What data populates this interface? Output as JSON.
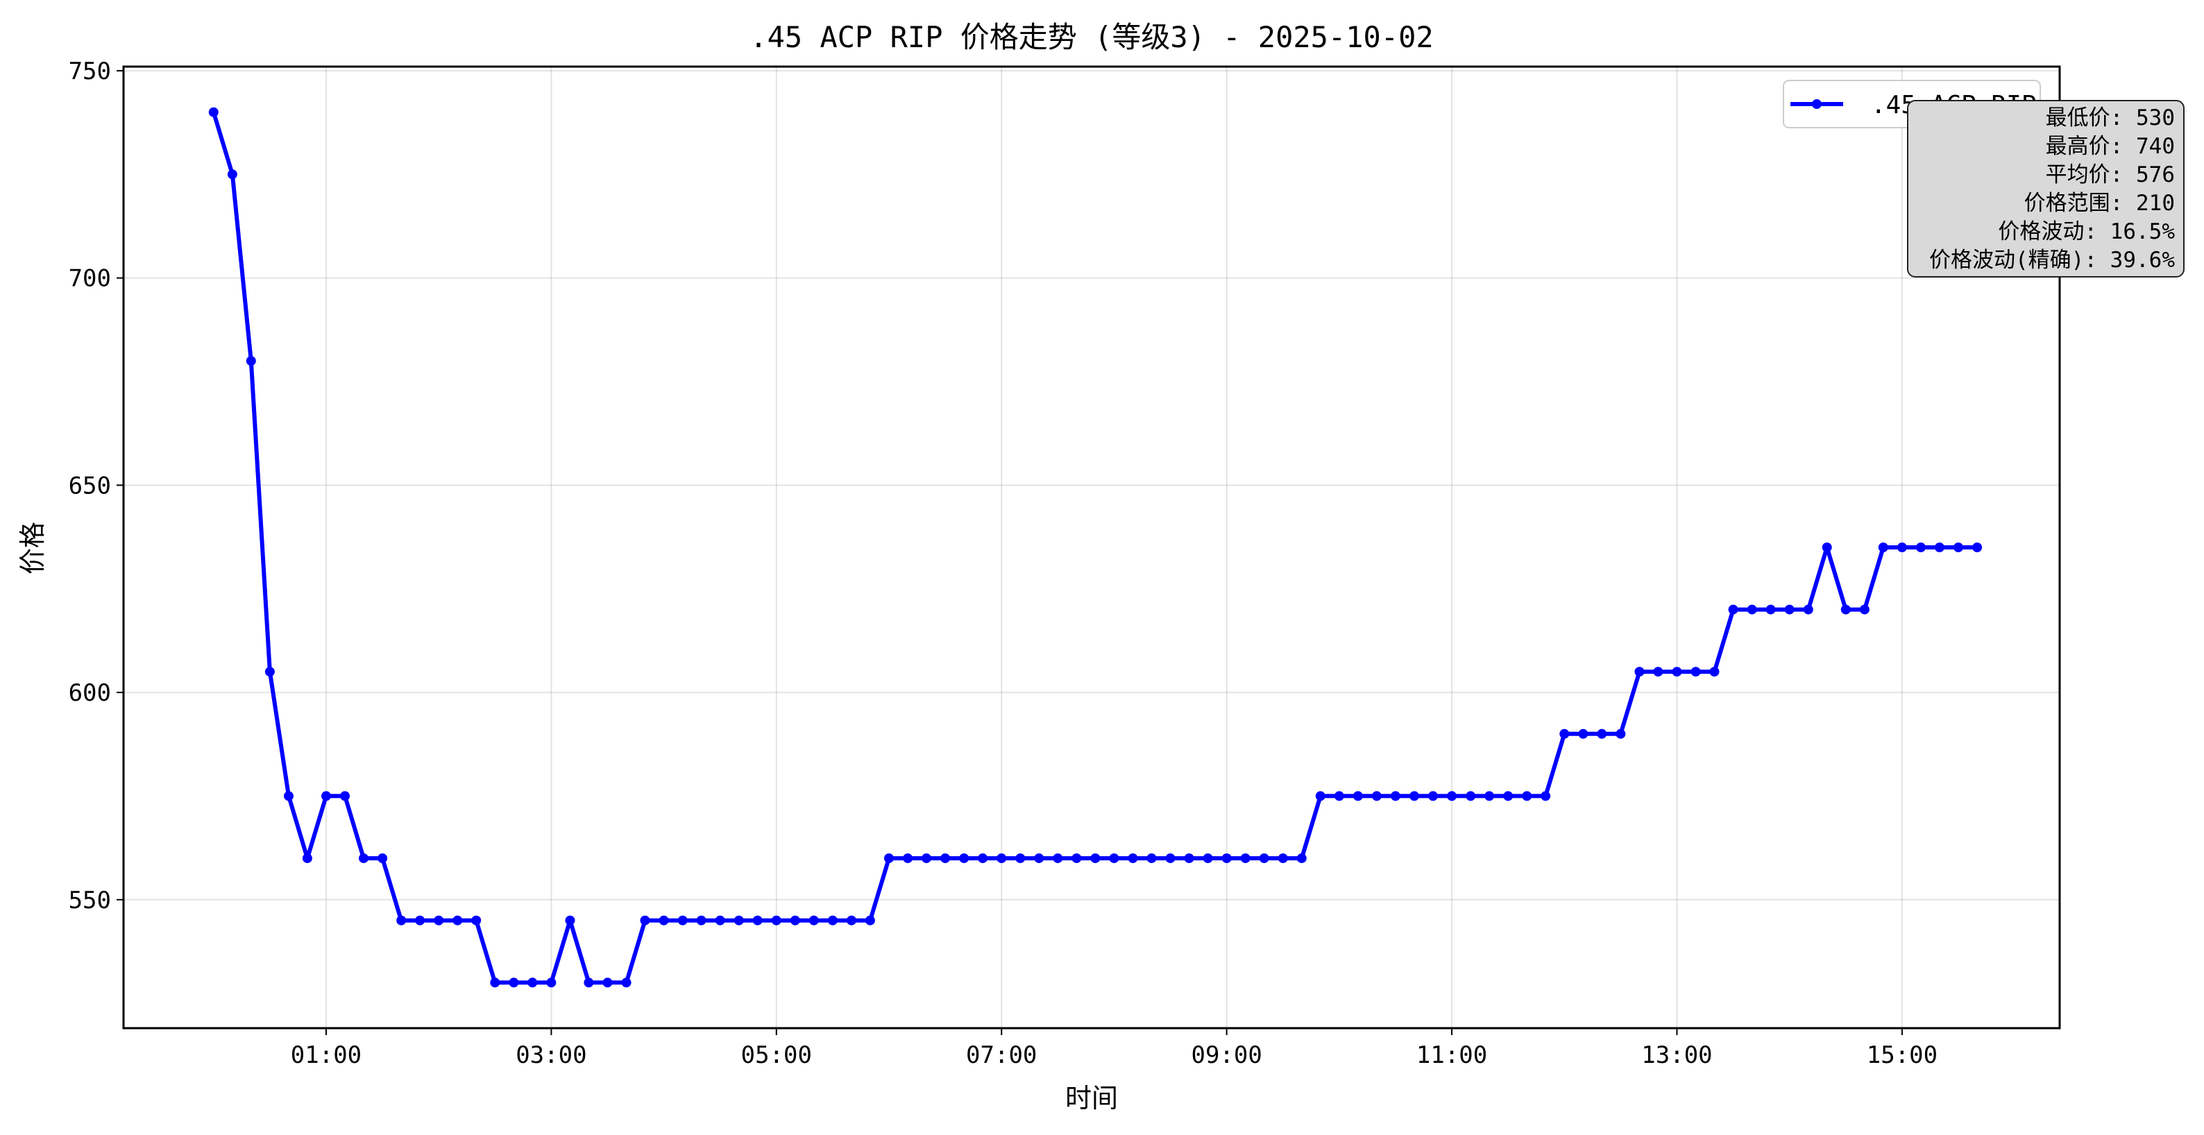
{
  "chart_data": {
    "type": "line",
    "title": ".45 ACP RIP 价格走势 (等级3) - 2025-10-02",
    "xlabel": "时间",
    "ylabel": "价格",
    "x_tick_labels": [
      "01:00",
      "03:00",
      "05:00",
      "07:00",
      "09:00",
      "11:00",
      "13:00",
      "15:00"
    ],
    "y_ticks": [
      550,
      600,
      650,
      700,
      750
    ],
    "ylim": [
      519,
      751
    ],
    "xlim_hours": [
      -0.8,
      16.4
    ],
    "grid": true,
    "legend_position": "top-right",
    "series": [
      {
        "name": ".45 ACP RIP",
        "color": "#0000ff",
        "marker": "circle",
        "x_hours": [
          0,
          0.167,
          0.333,
          0.5,
          0.667,
          0.833,
          1,
          1.167,
          1.333,
          1.5,
          1.667,
          1.833,
          2,
          2.167,
          2.333,
          2.5,
          2.667,
          2.833,
          3,
          3.167,
          3.333,
          3.5,
          3.667,
          3.833,
          4,
          4.167,
          4.333,
          4.5,
          4.667,
          4.833,
          5,
          5.167,
          5.333,
          5.5,
          5.667,
          5.833,
          6,
          6.167,
          6.333,
          6.5,
          6.667,
          6.833,
          7,
          7.167,
          7.333,
          7.5,
          7.667,
          7.833,
          8,
          8.167,
          8.333,
          8.5,
          8.667,
          8.833,
          9,
          9.167,
          9.333,
          9.5,
          9.667,
          9.833,
          10,
          10.167,
          10.333,
          10.5,
          10.667,
          10.833,
          11,
          11.167,
          11.333,
          11.5,
          11.667,
          11.833,
          12,
          12.167,
          12.333,
          12.5,
          12.667,
          12.833,
          13,
          13.167,
          13.333,
          13.5,
          13.667,
          13.833,
          14,
          14.167,
          14.333,
          14.5,
          14.667,
          14.833,
          15,
          15.167,
          15.333,
          15.5,
          15.667
        ],
        "values": [
          740,
          725,
          680,
          605,
          575,
          560,
          575,
          575,
          560,
          560,
          545,
          545,
          545,
          545,
          545,
          530,
          530,
          530,
          530,
          545,
          530,
          530,
          530,
          545,
          545,
          545,
          545,
          545,
          545,
          545,
          545,
          545,
          545,
          545,
          545,
          545,
          560,
          560,
          560,
          560,
          560,
          560,
          560,
          560,
          560,
          560,
          560,
          560,
          560,
          560,
          560,
          560,
          560,
          560,
          560,
          560,
          560,
          560,
          560,
          575,
          575,
          575,
          575,
          575,
          575,
          575,
          575,
          575,
          575,
          575,
          575,
          575,
          590,
          590,
          590,
          590,
          605,
          605,
          605,
          605,
          605,
          620,
          620,
          620,
          620,
          620,
          635,
          620,
          620,
          635,
          635,
          635,
          635,
          635,
          635
        ]
      }
    ],
    "stats": [
      "最低价: 530",
      "最高价: 740",
      "平均价: 576",
      "价格范围: 210",
      "价格波动: 16.5%",
      "价格波动(精确): 39.6%"
    ]
  }
}
